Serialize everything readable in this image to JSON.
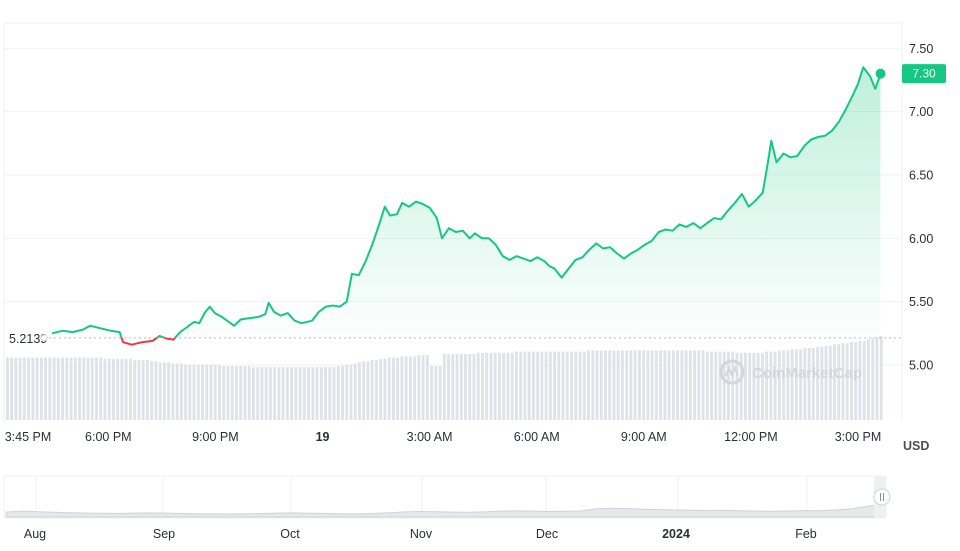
{
  "chart_data": {
    "type": "line",
    "currency": "USD",
    "reference_value": 5.2139,
    "reference_label": "5.2139",
    "current_value": 7.3,
    "current_label": "7.30",
    "ylim": [
      4.55,
      7.7
    ],
    "y_ticks": [
      {
        "value": 7.5,
        "label": "7.50"
      },
      {
        "value": 7.0,
        "label": "7.00"
      },
      {
        "value": 6.5,
        "label": "6.50"
      },
      {
        "value": 6.0,
        "label": "6.00"
      },
      {
        "value": 5.5,
        "label": "5.50"
      },
      {
        "value": 5.0,
        "label": "5.00"
      }
    ],
    "x_range_hours": [
      0,
      24
    ],
    "x_ticks": [
      {
        "t": 0.0,
        "label": "3:45 PM",
        "bold": false
      },
      {
        "t": 2.25,
        "label": "6:00 PM",
        "bold": false
      },
      {
        "t": 5.25,
        "label": "9:00 PM",
        "bold": false
      },
      {
        "t": 8.25,
        "label": "19",
        "bold": true
      },
      {
        "t": 11.25,
        "label": "3:00 AM",
        "bold": false
      },
      {
        "t": 14.25,
        "label": "6:00 AM",
        "bold": false
      },
      {
        "t": 17.25,
        "label": "9:00 AM",
        "bold": false
      },
      {
        "t": 20.25,
        "label": "12:00 PM",
        "bold": false
      },
      {
        "t": 23.25,
        "label": "3:00 PM",
        "bold": false
      }
    ],
    "series": [
      {
        "up_color": "#16c784",
        "down_color": "#ea3943",
        "points": [
          [
            0.0,
            5.25
          ],
          [
            0.3,
            5.27
          ],
          [
            0.6,
            5.26
          ],
          [
            0.9,
            5.28
          ],
          [
            1.1,
            5.31
          ],
          [
            1.4,
            5.29
          ],
          [
            1.7,
            5.27
          ],
          [
            1.95,
            5.26
          ],
          [
            2.05,
            5.18
          ],
          [
            2.3,
            5.16
          ],
          [
            2.6,
            5.18
          ],
          [
            2.9,
            5.19
          ],
          [
            3.1,
            5.23
          ],
          [
            3.3,
            5.21
          ],
          [
            3.5,
            5.2
          ],
          [
            3.7,
            5.26
          ],
          [
            3.9,
            5.3
          ],
          [
            4.1,
            5.34
          ],
          [
            4.25,
            5.33
          ],
          [
            4.4,
            5.41
          ],
          [
            4.55,
            5.46
          ],
          [
            4.7,
            5.41
          ],
          [
            4.9,
            5.38
          ],
          [
            5.1,
            5.34
          ],
          [
            5.25,
            5.31
          ],
          [
            5.45,
            5.36
          ],
          [
            5.7,
            5.37
          ],
          [
            5.95,
            5.38
          ],
          [
            6.15,
            5.4
          ],
          [
            6.25,
            5.49
          ],
          [
            6.4,
            5.42
          ],
          [
            6.6,
            5.39
          ],
          [
            6.8,
            5.41
          ],
          [
            7.0,
            5.35
          ],
          [
            7.2,
            5.33
          ],
          [
            7.5,
            5.35
          ],
          [
            7.7,
            5.42
          ],
          [
            7.9,
            5.46
          ],
          [
            8.1,
            5.47
          ],
          [
            8.3,
            5.46
          ],
          [
            8.5,
            5.5
          ],
          [
            8.65,
            5.72
          ],
          [
            8.85,
            5.71
          ],
          [
            9.05,
            5.82
          ],
          [
            9.25,
            5.96
          ],
          [
            9.45,
            6.12
          ],
          [
            9.6,
            6.25
          ],
          [
            9.75,
            6.18
          ],
          [
            9.95,
            6.19
          ],
          [
            10.1,
            6.28
          ],
          [
            10.3,
            6.25
          ],
          [
            10.5,
            6.29
          ],
          [
            10.7,
            6.27
          ],
          [
            10.9,
            6.24
          ],
          [
            11.1,
            6.16
          ],
          [
            11.25,
            6.0
          ],
          [
            11.45,
            6.08
          ],
          [
            11.65,
            6.05
          ],
          [
            11.85,
            6.06
          ],
          [
            12.05,
            6.0
          ],
          [
            12.2,
            6.04
          ],
          [
            12.4,
            6.0
          ],
          [
            12.6,
            6.0
          ],
          [
            12.8,
            5.95
          ],
          [
            13.0,
            5.86
          ],
          [
            13.2,
            5.83
          ],
          [
            13.4,
            5.86
          ],
          [
            13.6,
            5.84
          ],
          [
            13.8,
            5.82
          ],
          [
            14.0,
            5.85
          ],
          [
            14.2,
            5.82
          ],
          [
            14.35,
            5.78
          ],
          [
            14.5,
            5.76
          ],
          [
            14.7,
            5.69
          ],
          [
            14.9,
            5.76
          ],
          [
            15.1,
            5.83
          ],
          [
            15.3,
            5.85
          ],
          [
            15.5,
            5.91
          ],
          [
            15.7,
            5.96
          ],
          [
            15.9,
            5.92
          ],
          [
            16.1,
            5.93
          ],
          [
            16.3,
            5.88
          ],
          [
            16.5,
            5.84
          ],
          [
            16.7,
            5.88
          ],
          [
            16.9,
            5.91
          ],
          [
            17.1,
            5.95
          ],
          [
            17.3,
            5.98
          ],
          [
            17.5,
            6.05
          ],
          [
            17.7,
            6.07
          ],
          [
            17.9,
            6.06
          ],
          [
            18.1,
            6.11
          ],
          [
            18.3,
            6.09
          ],
          [
            18.5,
            6.12
          ],
          [
            18.7,
            6.08
          ],
          [
            18.9,
            6.12
          ],
          [
            19.1,
            6.16
          ],
          [
            19.3,
            6.15
          ],
          [
            19.5,
            6.22
          ],
          [
            19.7,
            6.28
          ],
          [
            19.9,
            6.35
          ],
          [
            20.1,
            6.25
          ],
          [
            20.3,
            6.3
          ],
          [
            20.5,
            6.36
          ],
          [
            20.65,
            6.6
          ],
          [
            20.75,
            6.77
          ],
          [
            20.9,
            6.6
          ],
          [
            21.1,
            6.67
          ],
          [
            21.3,
            6.64
          ],
          [
            21.5,
            6.65
          ],
          [
            21.7,
            6.73
          ],
          [
            21.9,
            6.78
          ],
          [
            22.1,
            6.8
          ],
          [
            22.3,
            6.81
          ],
          [
            22.5,
            6.85
          ],
          [
            22.7,
            6.92
          ],
          [
            22.9,
            7.02
          ],
          [
            23.1,
            7.13
          ],
          [
            23.25,
            7.22
          ],
          [
            23.4,
            7.35
          ],
          [
            23.6,
            7.28
          ],
          [
            23.75,
            7.18
          ],
          [
            23.9,
            7.3
          ]
        ]
      }
    ],
    "volume": {
      "values": [
        0.52,
        0.52,
        0.52,
        0.52,
        0.52,
        0.52,
        0.52,
        0.52,
        0.52,
        0.52,
        0.52,
        0.52,
        0.52,
        0.52,
        0.52,
        0.52,
        0.52,
        0.52,
        0.52,
        0.52,
        0.52,
        0.52,
        0.52,
        0.51,
        0.51,
        0.51,
        0.51,
        0.51,
        0.51,
        0.51,
        0.5,
        0.5,
        0.5,
        0.5,
        0.49,
        0.49,
        0.48,
        0.48,
        0.48,
        0.47,
        0.47,
        0.47,
        0.46,
        0.46,
        0.46,
        0.46,
        0.46,
        0.46,
        0.46,
        0.46,
        0.46,
        0.45,
        0.45,
        0.45,
        0.45,
        0.45,
        0.45,
        0.45,
        0.44,
        0.44,
        0.44,
        0.44,
        0.44,
        0.44,
        0.44,
        0.44,
        0.44,
        0.44,
        0.44,
        0.44,
        0.44,
        0.44,
        0.44,
        0.44,
        0.44,
        0.44,
        0.44,
        0.44,
        0.45,
        0.45,
        0.46,
        0.46,
        0.47,
        0.48,
        0.49,
        0.49,
        0.5,
        0.5,
        0.51,
        0.51,
        0.52,
        0.52,
        0.52,
        0.53,
        0.53,
        0.53,
        0.53,
        0.54,
        0.54,
        0.54,
        0.45,
        0.45,
        0.45,
        0.55,
        0.55,
        0.55,
        0.55,
        0.55,
        0.55,
        0.55,
        0.55,
        0.56,
        0.56,
        0.56,
        0.56,
        0.56,
        0.56,
        0.56,
        0.56,
        0.56,
        0.57,
        0.57,
        0.57,
        0.57,
        0.57,
        0.57,
        0.57,
        0.57,
        0.57,
        0.57,
        0.57,
        0.57,
        0.57,
        0.57,
        0.57,
        0.57,
        0.57,
        0.58,
        0.58,
        0.58,
        0.58,
        0.58,
        0.58,
        0.58,
        0.58,
        0.58,
        0.58,
        0.58,
        0.58,
        0.58,
        0.58,
        0.58,
        0.58,
        0.58,
        0.58,
        0.58,
        0.58,
        0.58,
        0.58,
        0.58,
        0.58,
        0.58,
        0.58,
        0.58,
        0.58,
        0.57,
        0.57,
        0.57,
        0.57,
        0.57,
        0.57,
        0.57,
        0.56,
        0.56,
        0.56,
        0.56,
        0.56,
        0.56,
        0.56,
        0.57,
        0.57,
        0.57,
        0.58,
        0.58,
        0.58,
        0.59,
        0.59,
        0.59,
        0.6,
        0.6,
        0.6,
        0.61,
        0.61,
        0.62,
        0.62,
        0.63,
        0.63,
        0.64,
        0.64,
        0.65,
        0.65,
        0.66,
        0.66,
        0.67,
        0.68,
        0.69,
        0.7
      ]
    },
    "navigator": {
      "months": [
        {
          "label": "Aug",
          "bold": false
        },
        {
          "label": "Sep",
          "bold": false
        },
        {
          "label": "Oct",
          "bold": false
        },
        {
          "label": "Nov",
          "bold": false
        },
        {
          "label": "Dec",
          "bold": false
        },
        {
          "label": "2024",
          "bold": true
        },
        {
          "label": "Feb",
          "bold": false
        }
      ],
      "trend": [
        0.25,
        0.3,
        0.27,
        0.24,
        0.22,
        0.2,
        0.19,
        0.18,
        0.2,
        0.21,
        0.2,
        0.18,
        0.17,
        0.16,
        0.15,
        0.16,
        0.18,
        0.2,
        0.21,
        0.19,
        0.18,
        0.17,
        0.16,
        0.18,
        0.22,
        0.26,
        0.28,
        0.27,
        0.25,
        0.24,
        0.26,
        0.3,
        0.32,
        0.3,
        0.28,
        0.29,
        0.31,
        0.42,
        0.45,
        0.43,
        0.4,
        0.38,
        0.36,
        0.35,
        0.33,
        0.34,
        0.32,
        0.3,
        0.29,
        0.31,
        0.33,
        0.32,
        0.36,
        0.42,
        0.55,
        0.65
      ]
    },
    "watermark": "CoinMarketCap"
  }
}
